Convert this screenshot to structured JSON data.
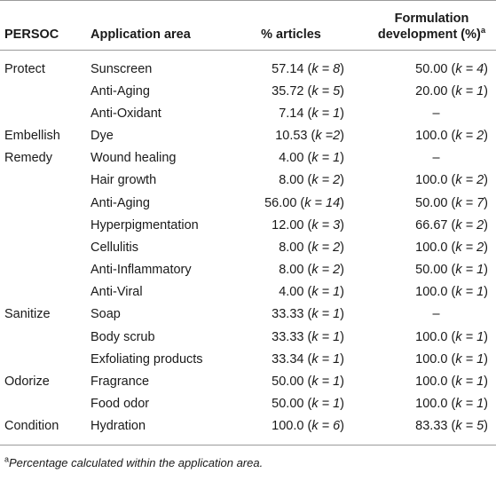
{
  "headers": {
    "persoc": "PERSOC",
    "area": "Application area",
    "articles": "% articles",
    "formulation_line1": "Formulation",
    "formulation_line2": "development (%)",
    "formulation_sup": "a"
  },
  "rows": [
    {
      "persoc": "Protect",
      "area": "Sunscreen",
      "pct": "57.14",
      "pk": "k = 8",
      "form": "50.00",
      "fk": "k = 4"
    },
    {
      "persoc": "",
      "area": "Anti-Aging",
      "pct": "35.72",
      "pk": "k = 5",
      "form": "20.00",
      "fk": "k = 1"
    },
    {
      "persoc": "",
      "area": "Anti-Oxidant",
      "pct": "7.14",
      "pk": "k = 1",
      "form": "–",
      "fk": ""
    },
    {
      "persoc": "Embellish",
      "area": "Dye",
      "pct": "10.53",
      "pk": "k =2",
      "form": "100.0",
      "fk": "k = 2"
    },
    {
      "persoc": "Remedy",
      "area": "Wound healing",
      "pct": "4.00",
      "pk": "k = 1",
      "form": "–",
      "fk": ""
    },
    {
      "persoc": "",
      "area": "Hair growth",
      "pct": "8.00",
      "pk": "k = 2",
      "form": "100.0",
      "fk": "k = 2"
    },
    {
      "persoc": "",
      "area": "Anti-Aging",
      "pct": "56.00",
      "pk": "k = 14",
      "form": "50.00",
      "fk": "k = 7"
    },
    {
      "persoc": "",
      "area": "Hyperpigmentation",
      "pct": "12.00",
      "pk": "k = 3",
      "form": "66.67",
      "fk": "k = 2"
    },
    {
      "persoc": "",
      "area": "Cellulitis",
      "pct": "8.00",
      "pk": "k = 2",
      "form": "100.0",
      "fk": "k = 2"
    },
    {
      "persoc": "",
      "area": "Anti-Inflammatory",
      "pct": "8.00",
      "pk": "k = 2",
      "form": "50.00",
      "fk": "k = 1"
    },
    {
      "persoc": "",
      "area": "Anti-Viral",
      "pct": "4.00",
      "pk": "k = 1",
      "form": "100.0",
      "fk": "k = 1"
    },
    {
      "persoc": "Sanitize",
      "area": "Soap",
      "pct": "33.33",
      "pk": "k = 1",
      "form": "–",
      "fk": ""
    },
    {
      "persoc": "",
      "area": "Body scrub",
      "pct": "33.33",
      "pk": "k = 1",
      "form": "100.0",
      "fk": "k = 1"
    },
    {
      "persoc": "",
      "area": "Exfoliating products",
      "pct": "33.34",
      "pk": "k = 1",
      "form": "100.0",
      "fk": "k = 1"
    },
    {
      "persoc": "Odorize",
      "area": "Fragrance",
      "pct": "50.00",
      "pk": "k = 1",
      "form": "100.0",
      "fk": "k = 1"
    },
    {
      "persoc": "",
      "area": "Food odor",
      "pct": "50.00",
      "pk": "k = 1",
      "form": "100.0",
      "fk": "k = 1"
    },
    {
      "persoc": "Condition",
      "area": "Hydration",
      "pct": "100.0",
      "pk": "k = 6",
      "form": "83.33",
      "fk": "k = 5"
    }
  ],
  "footnote": {
    "marker": "a",
    "text": "Percentage calculated within the application area."
  }
}
